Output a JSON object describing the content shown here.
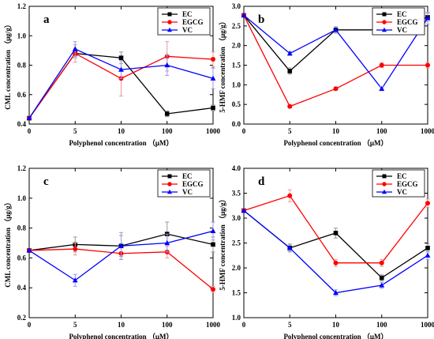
{
  "chart_data": [
    {
      "type": "line",
      "panel_label": "a",
      "xlabel": "Polyphenol concentration （μM）",
      "ylabel": "CML concentration （μg/g）",
      "categories": [
        "0",
        "5",
        "10",
        "100",
        "1000"
      ],
      "ylim": [
        0.4,
        1.2
      ],
      "yticks": [
        "0.4",
        "0.6",
        "0.8",
        "1.0",
        "1.2"
      ],
      "legend_position": "top-right",
      "series": [
        {
          "name": "EC",
          "color": "#000000",
          "marker": "square",
          "values": [
            0.44,
            0.88,
            0.85,
            0.47,
            0.51
          ],
          "errors": [
            0,
            0.03,
            0.04,
            0.02,
            0.02
          ]
        },
        {
          "name": "EGCG",
          "color": "#ff0000",
          "marker": "circle",
          "values": [
            0.44,
            0.88,
            0.71,
            0.86,
            0.84
          ],
          "errors": [
            0,
            0.06,
            0.12,
            0.1,
            0.05
          ]
        },
        {
          "name": "VC",
          "color": "#0000ff",
          "marker": "triangle",
          "values": [
            0.44,
            0.91,
            0.77,
            0.8,
            0.71
          ],
          "errors": [
            0,
            0.05,
            0.06,
            0.07,
            0.07
          ]
        }
      ]
    },
    {
      "type": "line",
      "panel_label": "b",
      "xlabel": "Polyphenol concentration （μM）",
      "ylabel": "5-HMF concentration （μg/g）",
      "categories": [
        "0",
        "5",
        "10",
        "100",
        "1000"
      ],
      "ylim": [
        0.0,
        3.0
      ],
      "yticks": [
        "0.0",
        "0.5",
        "1.0",
        "1.5",
        "2.0",
        "2.5",
        "3.0"
      ],
      "legend_position": "top-right",
      "series": [
        {
          "name": "EC",
          "color": "#000000",
          "marker": "square",
          "values": [
            2.77,
            1.35,
            2.4,
            2.4,
            2.72
          ],
          "errors": [
            0,
            0.08,
            0.08,
            0.1,
            0.1
          ]
        },
        {
          "name": "EGCG",
          "color": "#ff0000",
          "marker": "circle",
          "values": [
            2.77,
            0.45,
            0.9,
            1.5,
            1.5
          ],
          "errors": [
            0,
            0.04,
            0.04,
            0.06,
            0.07
          ]
        },
        {
          "name": "VC",
          "color": "#0000ff",
          "marker": "triangle",
          "values": [
            2.77,
            1.8,
            2.4,
            0.9,
            2.7
          ],
          "errors": [
            0,
            0.05,
            0.08,
            0.05,
            0.15
          ]
        }
      ]
    },
    {
      "type": "line",
      "panel_label": "c",
      "xlabel": "Polyphenol concentration （μM）",
      "ylabel": "CML concentration （μg/g）",
      "categories": [
        "0",
        "5",
        "10",
        "100",
        "1000"
      ],
      "ylim": [
        0.2,
        1.2
      ],
      "yticks": [
        "0.2",
        "0.4",
        "0.6",
        "0.8",
        "1.0",
        "1.2"
      ],
      "legend_position": "top-right",
      "series": [
        {
          "name": "EC",
          "color": "#000000",
          "marker": "square",
          "values": [
            0.65,
            0.69,
            0.68,
            0.76,
            0.69
          ],
          "errors": [
            0,
            0.05,
            0.07,
            0.08,
            0.05
          ]
        },
        {
          "name": "EGCG",
          "color": "#ff0000",
          "marker": "circle",
          "values": [
            0.65,
            0.66,
            0.63,
            0.64,
            0.39
          ],
          "errors": [
            0,
            0.04,
            0.04,
            0.04,
            0.02
          ]
        },
        {
          "name": "VC",
          "color": "#0000ff",
          "marker": "triangle",
          "values": [
            0.65,
            0.45,
            0.68,
            0.7,
            0.78
          ],
          "errors": [
            0,
            0.04,
            0.09,
            0.06,
            0.06
          ]
        }
      ]
    },
    {
      "type": "line",
      "panel_label": "d",
      "xlabel": "Polyphenol concentration （μM）",
      "ylabel": "5-HMF concentration （μg/g）",
      "categories": [
        "0",
        "5",
        "10",
        "100",
        "1000"
      ],
      "ylim": [
        1.0,
        4.0
      ],
      "yticks": [
        "1.0",
        "1.5",
        "2.0",
        "2.5",
        "3.0",
        "3.5",
        "4.0"
      ],
      "legend_position": "top-right",
      "series": [
        {
          "name": "EC",
          "color": "#000000",
          "marker": "square",
          "values": [
            3.15,
            2.4,
            2.7,
            1.8,
            2.4
          ],
          "errors": [
            0,
            0.08,
            0.1,
            0.06,
            0.08
          ]
        },
        {
          "name": "EGCG",
          "color": "#ff0000",
          "marker": "circle",
          "values": [
            3.15,
            3.45,
            2.1,
            2.1,
            3.3
          ],
          "errors": [
            0,
            0.12,
            0.07,
            0.07,
            0.08
          ]
        },
        {
          "name": "VC",
          "color": "#0000ff",
          "marker": "triangle",
          "values": [
            3.15,
            2.4,
            1.5,
            1.65,
            2.25
          ],
          "errors": [
            0,
            0.06,
            0.06,
            0.06,
            0.08
          ]
        }
      ]
    }
  ]
}
